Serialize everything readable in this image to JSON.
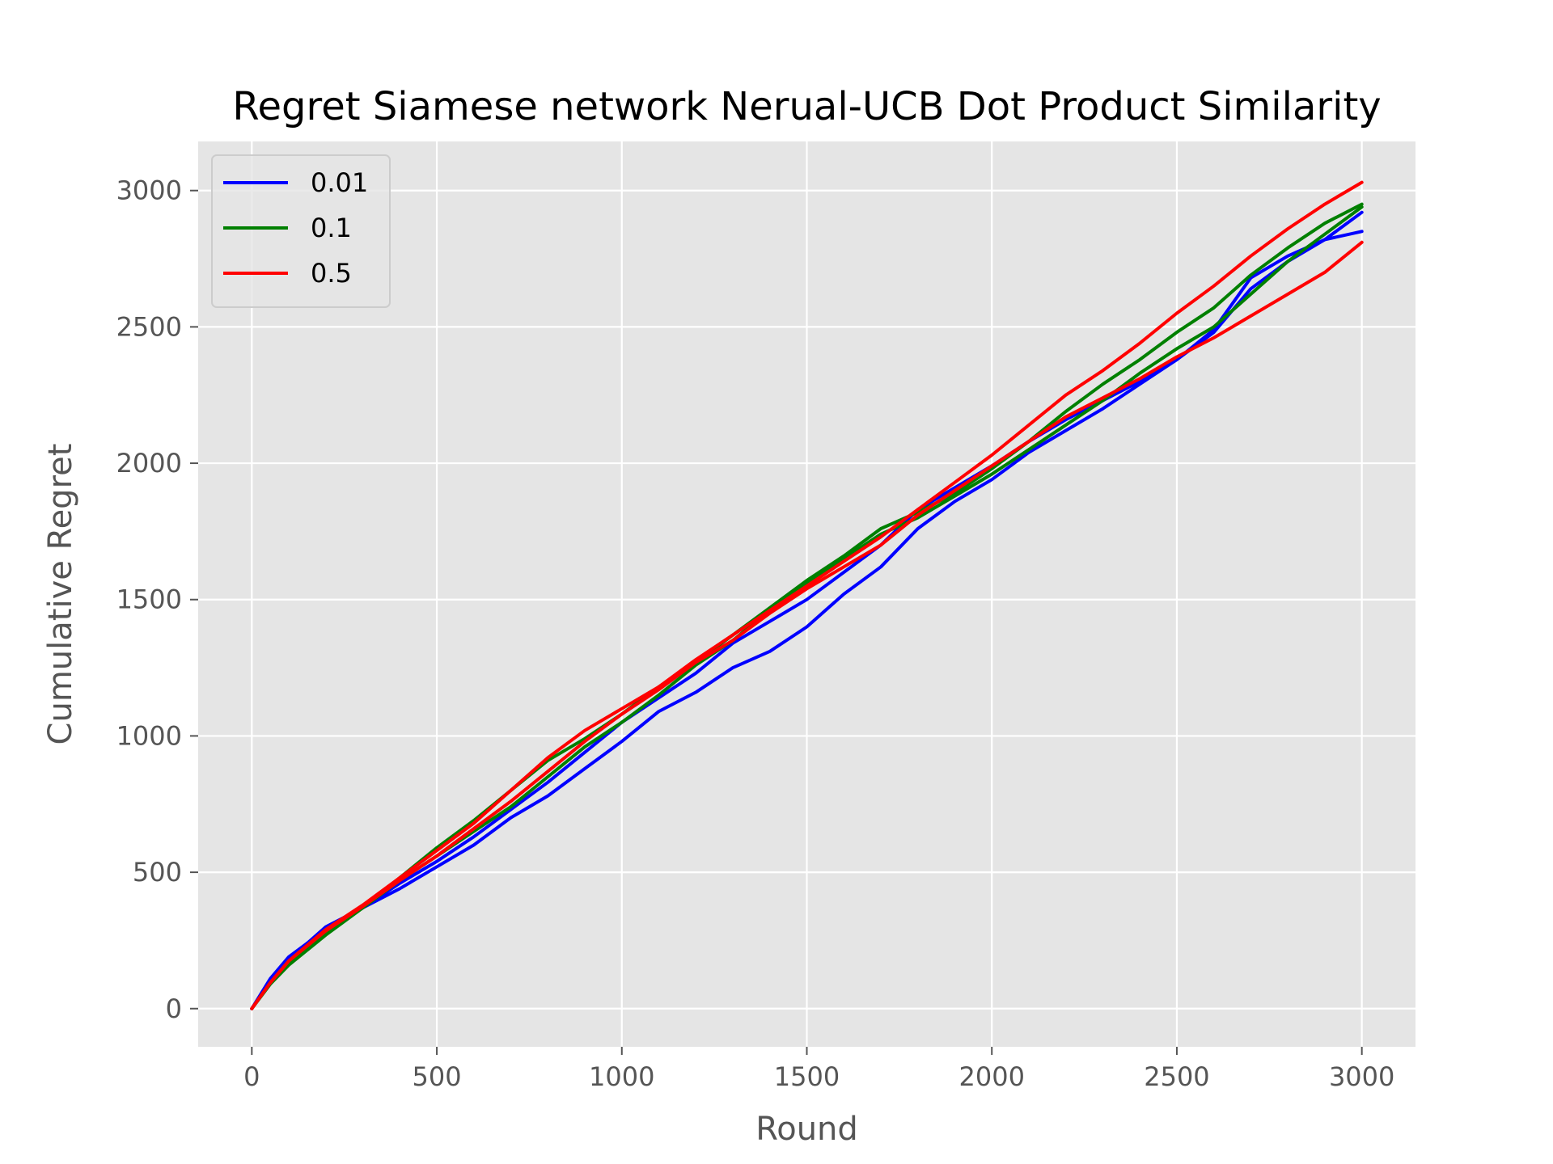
{
  "chart_data": {
    "type": "line",
    "title": "Regret Siamese network Nerual-UCB Dot Product Similarity",
    "xlabel": "Round",
    "ylabel": "Cumulative Regret",
    "xlim": [
      -145,
      3145
    ],
    "ylim": [
      -140,
      3180
    ],
    "xticks": [
      0,
      500,
      1000,
      1500,
      2000,
      2500,
      3000
    ],
    "yticks": [
      0,
      500,
      1000,
      1500,
      2000,
      2500,
      3000
    ],
    "grid": true,
    "legend_position": "top-left",
    "legend": [
      {
        "label": "0.01",
        "color": "#0000ff"
      },
      {
        "label": "0.1",
        "color": "#008000"
      },
      {
        "label": "0.5",
        "color": "#ff0000"
      }
    ],
    "series": [
      {
        "legend": "0.01",
        "color": "#0000ff",
        "x": [
          0,
          50,
          100,
          200,
          300,
          400,
          500,
          600,
          700,
          800,
          900,
          1000,
          1100,
          1200,
          1300,
          1400,
          1500,
          1600,
          1700,
          1800,
          1900,
          2000,
          2100,
          2200,
          2300,
          2400,
          2500,
          2600,
          2700,
          2800,
          2900,
          3000
        ],
        "y": [
          0,
          100,
          180,
          300,
          370,
          440,
          520,
          600,
          700,
          780,
          880,
          980,
          1090,
          1160,
          1250,
          1310,
          1400,
          1520,
          1620,
          1760,
          1860,
          1940,
          2040,
          2120,
          2200,
          2290,
          2380,
          2480,
          2640,
          2740,
          2820,
          2920
        ]
      },
      {
        "legend": "0.01",
        "color": "#0000ff",
        "x": [
          0,
          50,
          100,
          200,
          300,
          400,
          500,
          600,
          700,
          800,
          900,
          1000,
          1100,
          1200,
          1300,
          1400,
          1500,
          1600,
          1700,
          1800,
          1900,
          2000,
          2100,
          2200,
          2300,
          2400,
          2500,
          2600,
          2700,
          2800,
          2900,
          3000
        ],
        "y": [
          0,
          110,
          190,
          290,
          370,
          460,
          540,
          630,
          730,
          830,
          940,
          1050,
          1140,
          1230,
          1340,
          1420,
          1500,
          1600,
          1700,
          1830,
          1910,
          1990,
          2080,
          2160,
          2230,
          2300,
          2380,
          2490,
          2680,
          2760,
          2820,
          2850
        ]
      },
      {
        "legend": "0.1",
        "color": "#008000",
        "x": [
          0,
          50,
          100,
          200,
          300,
          400,
          500,
          600,
          700,
          800,
          900,
          1000,
          1100,
          1200,
          1300,
          1400,
          1500,
          1600,
          1700,
          1800,
          1900,
          2000,
          2100,
          2200,
          2300,
          2400,
          2500,
          2600,
          2700,
          2800,
          2900,
          3000
        ],
        "y": [
          0,
          90,
          160,
          270,
          370,
          480,
          590,
          690,
          800,
          910,
          990,
          1080,
          1180,
          1270,
          1370,
          1470,
          1570,
          1660,
          1760,
          1820,
          1890,
          1980,
          2080,
          2190,
          2290,
          2380,
          2480,
          2570,
          2690,
          2790,
          2880,
          2950
        ]
      },
      {
        "legend": "0.1",
        "color": "#008000",
        "x": [
          0,
          50,
          100,
          200,
          300,
          400,
          500,
          600,
          700,
          800,
          900,
          1000,
          1100,
          1200,
          1300,
          1400,
          1500,
          1600,
          1700,
          1800,
          1900,
          2000,
          2100,
          2200,
          2300,
          2400,
          2500,
          2600,
          2700,
          2800,
          2900,
          3000
        ],
        "y": [
          0,
          95,
          170,
          280,
          370,
          470,
          560,
          650,
          740,
          850,
          960,
          1050,
          1150,
          1260,
          1350,
          1460,
          1560,
          1650,
          1740,
          1800,
          1880,
          1960,
          2050,
          2140,
          2230,
          2330,
          2420,
          2500,
          2620,
          2740,
          2840,
          2940
        ]
      },
      {
        "legend": "0.5",
        "color": "#ff0000",
        "x": [
          0,
          50,
          100,
          200,
          300,
          400,
          500,
          600,
          700,
          800,
          900,
          1000,
          1100,
          1200,
          1300,
          1400,
          1500,
          1600,
          1700,
          1800,
          1900,
          2000,
          2100,
          2200,
          2300,
          2400,
          2500,
          2600,
          2700,
          2800,
          2900,
          3000
        ],
        "y": [
          0,
          95,
          175,
          290,
          380,
          480,
          580,
          680,
          800,
          920,
          1020,
          1100,
          1180,
          1280,
          1370,
          1460,
          1550,
          1640,
          1730,
          1830,
          1930,
          2030,
          2140,
          2250,
          2340,
          2440,
          2550,
          2650,
          2760,
          2860,
          2950,
          3030
        ]
      },
      {
        "legend": "0.5",
        "color": "#ff0000",
        "x": [
          0,
          50,
          100,
          200,
          300,
          400,
          500,
          600,
          700,
          800,
          900,
          1000,
          1100,
          1200,
          1300,
          1400,
          1500,
          1600,
          1700,
          1800,
          1900,
          2000,
          2100,
          2200,
          2300,
          2400,
          2500,
          2600,
          2700,
          2800,
          2900,
          3000
        ],
        "y": [
          0,
          95,
          175,
          285,
          375,
          470,
          560,
          660,
          760,
          870,
          980,
          1080,
          1170,
          1270,
          1350,
          1450,
          1540,
          1620,
          1700,
          1810,
          1900,
          1990,
          2080,
          2170,
          2240,
          2310,
          2390,
          2460,
          2540,
          2620,
          2700,
          2810
        ]
      }
    ]
  }
}
